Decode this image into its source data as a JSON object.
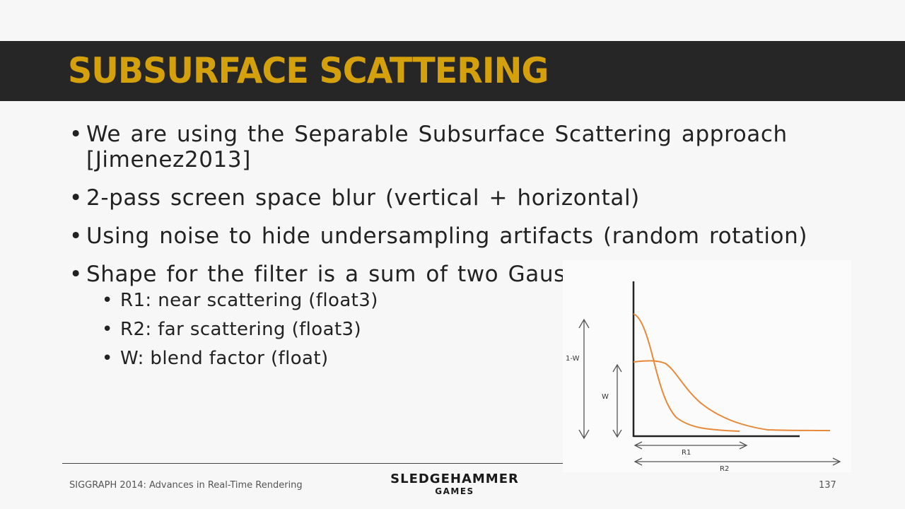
{
  "slide": {
    "title": "SUBSURFACE SCATTERING",
    "bullets": [
      "We are using the Separable Subsurface Scattering approach [Jimenez2013]",
      "2-pass screen space blur (vertical + horizontal)",
      "Using noise to hide undersampling artifacts (random rotation)",
      "Shape for the filter is a sum of two Gaussians:"
    ],
    "sub_bullets": [
      "R1: near scattering (float3)",
      "R2: far scattering (float3)",
      "W: blend factor (float)"
    ]
  },
  "figure": {
    "label_1w": "1-W",
    "label_w": "W",
    "label_r1": "R1",
    "label_r2": "R2"
  },
  "footer": {
    "conference": "SIGGRAPH 2014: Advances in Real-Time Rendering",
    "logo_line1": "SLEDGEHAMMER",
    "logo_line2": "GAMES",
    "page_number": "137"
  },
  "colors": {
    "title": "#d4a00c",
    "title_bar": "#262626",
    "curve": "#e8893a"
  }
}
